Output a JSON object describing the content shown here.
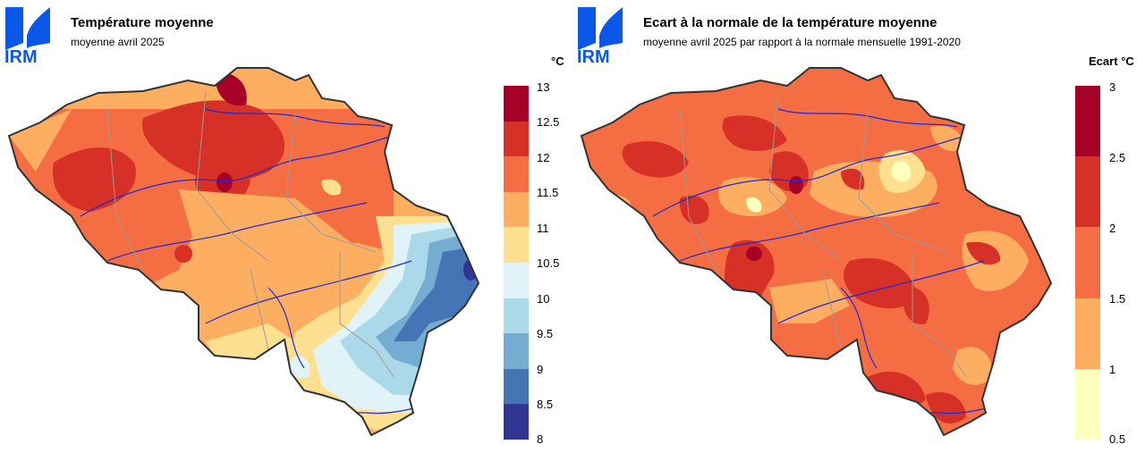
{
  "left_panel": {
    "logo_text": "IRM",
    "title": "Température moyenne",
    "subtitle": "moyenne avril 2025",
    "unit": "°C",
    "legend": {
      "ticks": [
        "13",
        "12.5",
        "12",
        "11.5",
        "11",
        "10.5",
        "10",
        "9.5",
        "9",
        "8.5",
        "8"
      ],
      "colors": [
        "#a50026",
        "#d73027",
        "#f46d43",
        "#fdae61",
        "#fee090",
        "#e0f3f8",
        "#abd9e9",
        "#74add1",
        "#4575b4",
        "#313695"
      ]
    }
  },
  "right_panel": {
    "logo_text": "IRM",
    "title": "Ecart à la normale de la température moyenne",
    "subtitle": "moyenne avril 2025 par rapport à la normale mensuelle 1991-2020",
    "unit": "Ecart °C",
    "legend": {
      "ticks": [
        "3",
        "2.5",
        "2",
        "1.5",
        "1",
        "0.5"
      ],
      "colors": [
        "#a50026",
        "#d73027",
        "#f46d43",
        "#fdae61",
        "#ffffbf"
      ]
    }
  }
}
